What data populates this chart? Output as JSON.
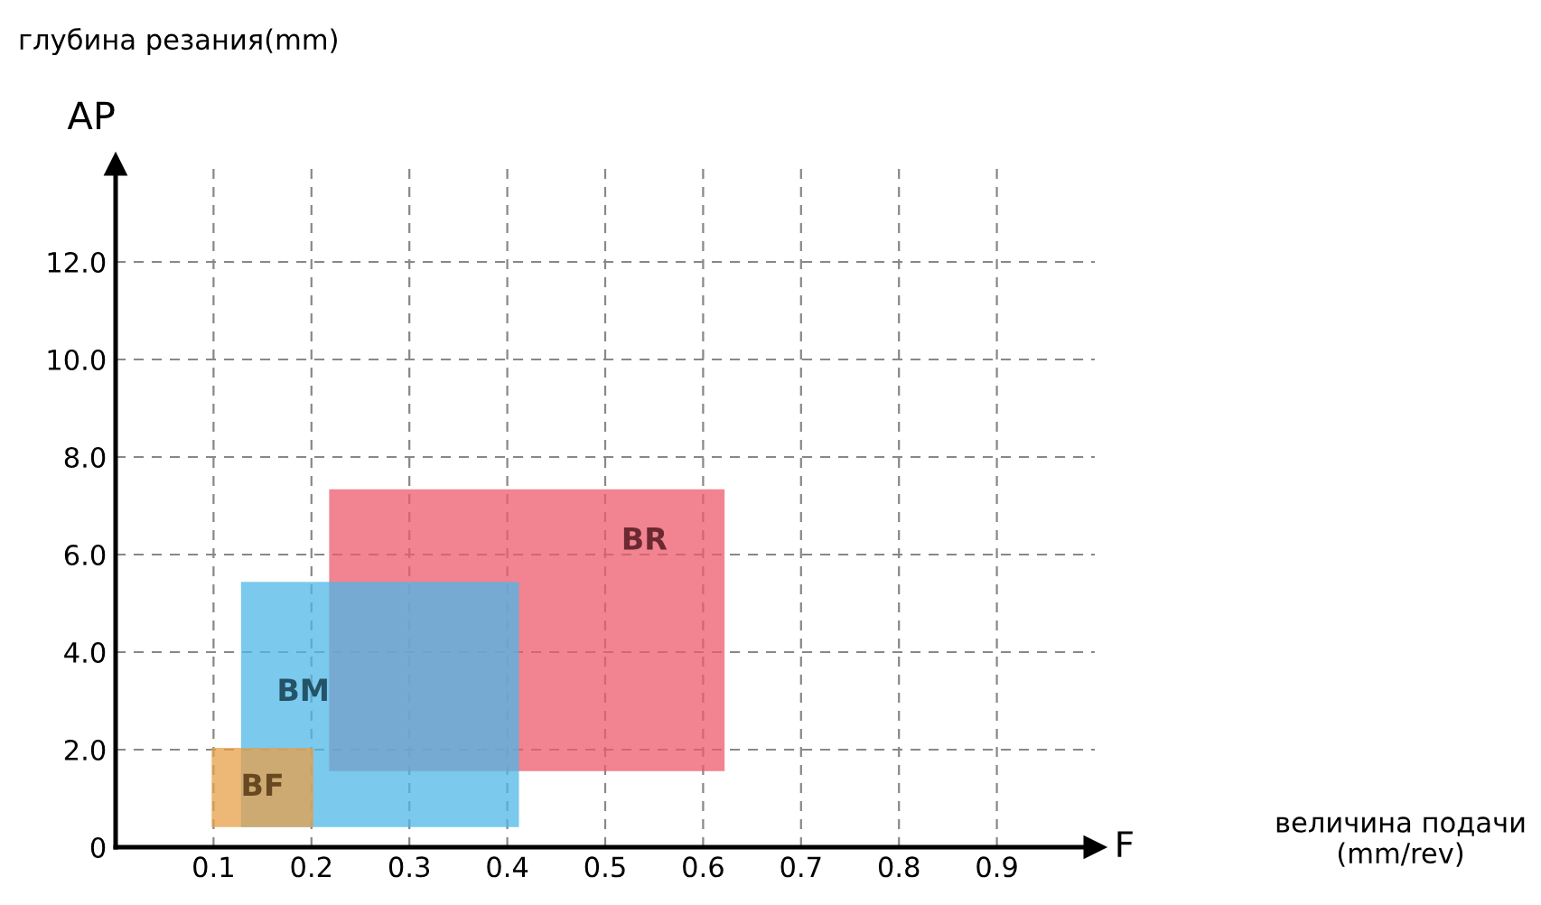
{
  "chart_data": {
    "type": "area",
    "xlabel": "F",
    "ylabel": "AP",
    "annotations": [
      "глубина резания(mm)",
      "величина подачи\n(mm/rev)"
    ],
    "xlim": [
      0,
      1.0
    ],
    "ylim": [
      0,
      14.0
    ],
    "xticks": [
      0.1,
      0.2,
      0.3,
      0.4,
      0.5,
      0.6,
      0.7,
      0.8,
      0.9
    ],
    "yticks": [
      {
        "value": 0,
        "label": "0"
      },
      {
        "value": 2,
        "label": "2.0"
      },
      {
        "value": 4,
        "label": "4.0"
      },
      {
        "value": 6,
        "label": "6.0"
      },
      {
        "value": 8,
        "label": "8.0"
      },
      {
        "value": 10,
        "label": "10.0"
      },
      {
        "value": 12,
        "label": "12.0"
      }
    ],
    "grid": true,
    "line_style": "dashed",
    "series": [
      {
        "name": "BR",
        "color": "#ee5a6c",
        "x": [
          0.22,
          0.22,
          0.62,
          0.62,
          0.22
        ],
        "values": [
          1.6,
          7.3,
          7.3,
          1.6,
          1.6
        ]
      },
      {
        "name": "BM",
        "color": "#4fb8e8",
        "x": [
          0.13,
          0.13,
          0.41,
          0.41,
          0.13
        ],
        "values": [
          0.45,
          5.4,
          5.4,
          0.45,
          0.45
        ]
      },
      {
        "name": "BF",
        "color": "#e8a048",
        "x": [
          0.1,
          0.1,
          0.2,
          0.2,
          0.1
        ],
        "values": [
          0.45,
          2.0,
          2.0,
          0.45,
          0.45
        ]
      }
    ]
  }
}
